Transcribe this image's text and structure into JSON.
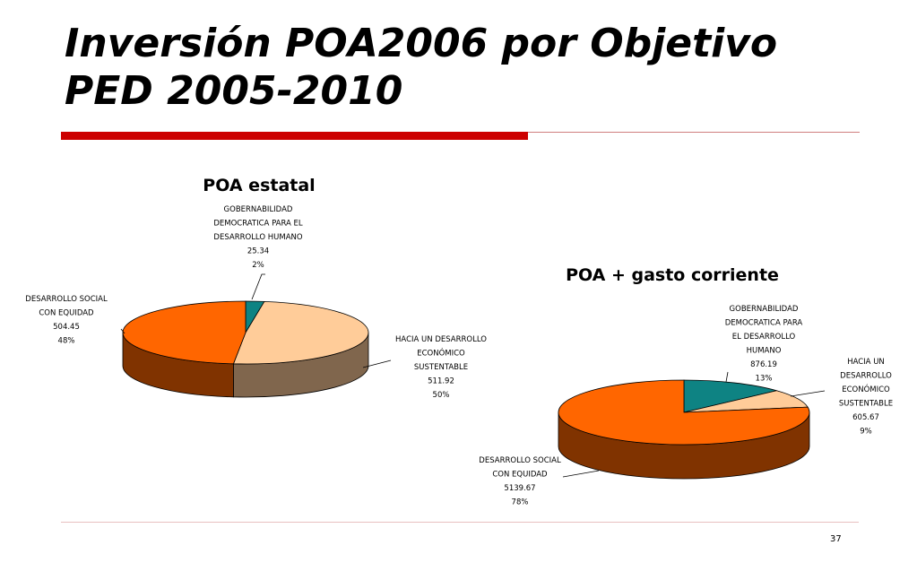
{
  "slide": {
    "title_line1": "Inversión POA2006 por Objetivo",
    "title_line2": "PED 2005-2010",
    "page_number": "37"
  },
  "chart_data": [
    {
      "type": "pie",
      "title": "POA estatal",
      "slices": [
        {
          "label_lines": [
            "GOBERNABILIDAD",
            "DEMOCRATICA PARA EL",
            "DESARROLLO HUMANO"
          ],
          "value": 25.34,
          "value_text": "25.34",
          "percent": "2%",
          "color": "#0e8383"
        },
        {
          "label_lines": [
            "HACIA UN DESARROLLO",
            "ECONÓMICO",
            "SUSTENTABLE"
          ],
          "value": 511.92,
          "value_text": "511.92",
          "percent": "50%",
          "color": "#ffcc99"
        },
        {
          "label_lines": [
            "DESARROLLO SOCIAL",
            "CON EQUIDAD"
          ],
          "value": 504.45,
          "value_text": "504.45",
          "percent": "48%",
          "color": "#ff6600"
        }
      ]
    },
    {
      "type": "pie",
      "title": "POA + gasto corriente",
      "slices": [
        {
          "label_lines": [
            "GOBERNABILIDAD",
            "DEMOCRATICA PARA",
            "EL DESARROLLO",
            "HUMANO"
          ],
          "value": 876.19,
          "value_text": "876.19",
          "percent": "13%",
          "color": "#0e8383"
        },
        {
          "label_lines": [
            "HACIA UN",
            "DESARROLLO",
            "ECONÓMICO",
            "SUSTENTABLE"
          ],
          "value": 605.67,
          "value_text": "605.67",
          "percent": "9%",
          "color": "#ffcc99"
        },
        {
          "label_lines": [
            "DESARROLLO SOCIAL",
            "CON EQUIDAD"
          ],
          "value": 5139.67,
          "value_text": "5139.67",
          "percent": "78%",
          "color": "#ff6600"
        }
      ]
    }
  ]
}
